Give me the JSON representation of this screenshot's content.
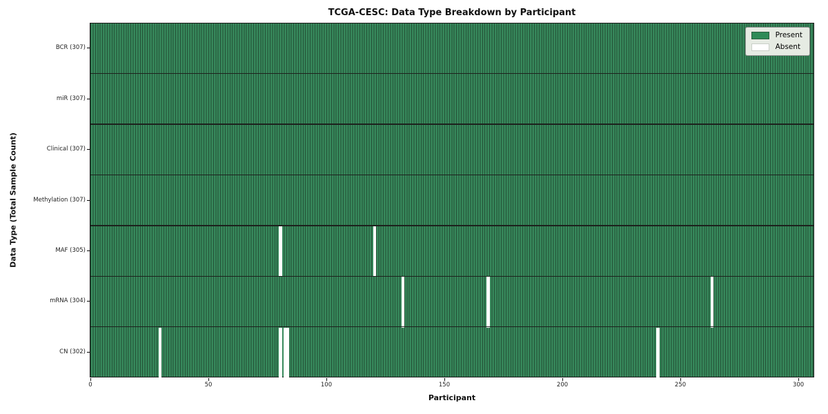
{
  "chart_data": {
    "type": "heatmap",
    "title": "TCGA-CESC: Data Type Breakdown by Participant",
    "xlabel": "Participant",
    "ylabel": "Data Type (Total Sample Count)",
    "n_participants": 307,
    "x_ticks": [
      0,
      50,
      100,
      150,
      200,
      250,
      300
    ],
    "legend_position": "upper right",
    "grid": false,
    "legend": [
      {
        "label": "Present",
        "color": "#2e8b57"
      },
      {
        "label": "Absent",
        "color": "#ffffff"
      }
    ],
    "rows": [
      {
        "label": "BCR (307)",
        "data_type": "BCR",
        "total_samples": 307,
        "absent_participants": []
      },
      {
        "label": "miR (307)",
        "data_type": "miR",
        "total_samples": 307,
        "absent_participants": []
      },
      {
        "label": "Clinical (307)",
        "data_type": "Clinical",
        "total_samples": 307,
        "absent_participants": []
      },
      {
        "label": "Methylation (307)",
        "data_type": "Methylation",
        "total_samples": 307,
        "absent_participants": []
      },
      {
        "label": "MAF (305)",
        "data_type": "MAF",
        "total_samples": 305,
        "absent_participants": [
          80,
          120
        ]
      },
      {
        "label": "mRNA (304)",
        "data_type": "mRNA",
        "total_samples": 304,
        "absent_participants": [
          132,
          168,
          263
        ]
      },
      {
        "label": "CN (302)",
        "data_type": "CN",
        "total_samples": 302,
        "absent_participants": [
          29,
          80,
          82,
          83,
          240
        ]
      }
    ],
    "colors": {
      "present_fill": "#37895c",
      "cell_edge": "#234f35",
      "absent_fill": "#ffffff",
      "row_divider": "#1d211d",
      "plot_border": "#1a1a1a",
      "legend_bg": "#e6ebe3",
      "legend_border": "#8f8f8f"
    }
  }
}
